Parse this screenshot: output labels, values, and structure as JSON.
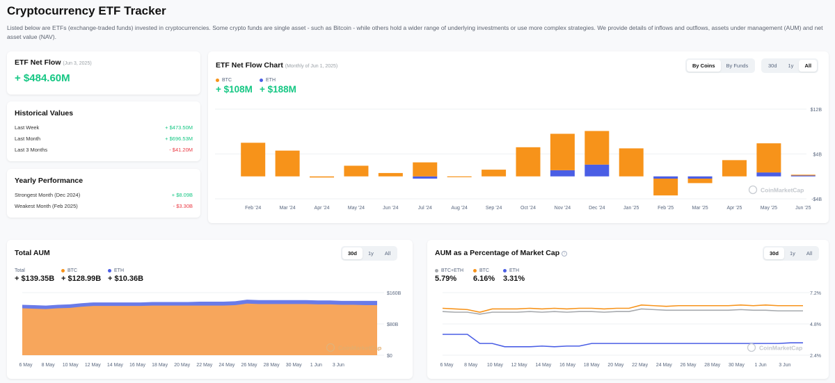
{
  "page": {
    "title": "Cryptocurrency ETF Tracker",
    "description": "Listed below are ETFs (exchange-traded funds) invested in cryptocurrencies. Some crypto funds are single asset - such as Bitcoin - while others hold a wider range of underlying investments or use more complex strategies. We provide details of inflows and outflows, assets under management (AUM) and net asset value (NAV)."
  },
  "net_flow": {
    "label": "ETF Net Flow",
    "date": "(Jun 3, 2025)",
    "value": "+ $484.60M"
  },
  "historical": {
    "title": "Historical Values",
    "rows": [
      {
        "label": "Last Week",
        "value": "+ $473.50M"
      },
      {
        "label": "Last Month",
        "value": "+ $696.53M"
      },
      {
        "label": "Last 3 Months",
        "value": "- $41.20M"
      }
    ]
  },
  "yearly": {
    "title": "Yearly Performance",
    "rows": [
      {
        "label": "Strongest Month (Dec 2024)",
        "value": "+ $8.09B"
      },
      {
        "label": "Weakest Month (Feb 2025)",
        "value": "- $3.30B"
      }
    ]
  },
  "flow_chart": {
    "title": "ETF Net Flow Chart",
    "subtitle": "(Monthly of Jun 1, 2025)",
    "toggle": [
      "By Coins",
      "By Funds"
    ],
    "ranges": [
      "30d",
      "1y",
      "All"
    ],
    "legend": [
      {
        "name": "BTC",
        "value": "+ $108M",
        "color": "#f7931a"
      },
      {
        "name": "ETH",
        "value": "+ $188M",
        "color": "#4a5ee5"
      }
    ],
    "watermark": "CoinMarketCap"
  },
  "aum": {
    "title": "Total AUM",
    "ranges": [
      "30d",
      "1y",
      "All"
    ],
    "legend": [
      {
        "name": "Total",
        "value": "+ $139.35B",
        "color": ""
      },
      {
        "name": "BTC",
        "value": "+ $128.99B",
        "color": "#f7931a"
      },
      {
        "name": "ETH",
        "value": "+ $10.36B",
        "color": "#4a5ee5"
      }
    ],
    "watermark": "CoinMarketCap"
  },
  "aum_pct": {
    "title": "AUM as a Percentage of Market Cap",
    "info_icon": "info-icon",
    "ranges": [
      "30d",
      "1y",
      "All"
    ],
    "legend": [
      {
        "name": "BTC+ETH",
        "value": "5.79%",
        "color": "#a6a9ad"
      },
      {
        "name": "BTC",
        "value": "6.16%",
        "color": "#f7931a"
      },
      {
        "name": "ETH",
        "value": "3.31%",
        "color": "#4a5ee5"
      }
    ],
    "watermark": "CoinMarketCap"
  },
  "chart_data": [
    {
      "type": "bar",
      "title": "ETF Net Flow Chart",
      "categories": [
        "Feb '24",
        "Mar '24",
        "Apr '24",
        "May '24",
        "Jun '24",
        "Jul '24",
        "Aug '24",
        "Sep '24",
        "Oct '24",
        "Nov '24",
        "Dec '24",
        "Jan '25",
        "Feb '25",
        "Mar '25",
        "Apr '25",
        "May '25",
        "Jun '25"
      ],
      "series": [
        {
          "name": "BTC",
          "color": "#f7931a",
          "values": [
            6.0,
            4.6,
            -0.2,
            1.9,
            0.6,
            2.5,
            -0.1,
            1.2,
            5.2,
            6.5,
            6.0,
            5.0,
            -3.0,
            -0.8,
            2.9,
            5.2,
            0.1
          ]
        },
        {
          "name": "ETH",
          "color": "#4a5ee5",
          "values": [
            0,
            0,
            0,
            0,
            0,
            -0.4,
            0,
            0,
            0,
            1.1,
            2.1,
            0,
            -0.4,
            -0.4,
            0,
            0.7,
            0.2
          ]
        }
      ],
      "y_ticks": [
        "$12B",
        "$4B",
        "-$4B"
      ],
      "ylim": [
        -4,
        12
      ]
    },
    {
      "type": "area",
      "title": "Total AUM",
      "x_ticks": [
        "6 May",
        "8 May",
        "10 May",
        "12 May",
        "14 May",
        "16 May",
        "18 May",
        "20 May",
        "22 May",
        "24 May",
        "26 May",
        "28 May",
        "30 May",
        "1 Jun",
        "3 Jun"
      ],
      "series": [
        {
          "name": "BTC",
          "color": "#f7931a",
          "values": [
            120,
            119,
            118,
            120,
            121,
            124,
            126,
            126,
            126,
            126,
            126,
            127,
            127,
            127,
            127,
            127,
            127,
            127,
            128,
            132,
            131,
            131,
            131,
            131,
            131,
            130,
            130,
            129,
            129,
            128,
            128
          ]
        },
        {
          "name": "Total",
          "color": "#4a5ee5",
          "values": [
            129,
            128,
            127,
            129,
            130,
            133,
            135,
            135,
            135,
            135,
            135,
            136,
            136,
            136,
            136,
            137,
            137,
            137,
            138,
            142,
            141,
            141,
            141,
            141,
            141,
            140,
            140,
            139,
            139,
            139,
            139
          ]
        }
      ],
      "y_ticks": [
        "$160B",
        "$80B",
        "$0"
      ],
      "ylim": [
        0,
        160
      ]
    },
    {
      "type": "line",
      "title": "AUM as a Percentage of Market Cap",
      "x_ticks": [
        "6 May",
        "8 May",
        "10 May",
        "12 May",
        "14 May",
        "16 May",
        "18 May",
        "20 May",
        "22 May",
        "24 May",
        "26 May",
        "28 May",
        "30 May",
        "1 Jun",
        "3 Jun"
      ],
      "series": [
        {
          "name": "BTC",
          "color": "#f7931a",
          "values": [
            6.0,
            5.95,
            5.9,
            5.7,
            5.95,
            5.95,
            5.95,
            6.0,
            5.95,
            6.0,
            5.95,
            6.0,
            6.0,
            5.95,
            6.0,
            6.0,
            6.25,
            6.2,
            6.15,
            6.2,
            6.2,
            6.2,
            6.2,
            6.2,
            6.25,
            6.2,
            6.25,
            6.2,
            6.2,
            6.2
          ]
        },
        {
          "name": "BTC+ETH",
          "color": "#a6a9ad",
          "values": [
            5.75,
            5.7,
            5.7,
            5.55,
            5.7,
            5.7,
            5.7,
            5.75,
            5.7,
            5.75,
            5.7,
            5.75,
            5.75,
            5.7,
            5.75,
            5.75,
            5.95,
            5.9,
            5.85,
            5.85,
            5.85,
            5.85,
            5.85,
            5.85,
            5.9,
            5.85,
            5.85,
            5.8,
            5.8,
            5.8
          ]
        },
        {
          "name": "ETH",
          "color": "#4a5ee5",
          "values": [
            4.0,
            4.0,
            4.0,
            3.3,
            3.3,
            3.05,
            3.05,
            3.05,
            3.1,
            3.05,
            3.1,
            3.1,
            3.3,
            3.3,
            3.3,
            3.3,
            3.3,
            3.3,
            3.3,
            3.3,
            3.3,
            3.3,
            3.3,
            3.3,
            3.3,
            3.3,
            3.3,
            3.3,
            3.35,
            3.35
          ]
        }
      ],
      "y_ticks": [
        "7.2%",
        "4.8%",
        "2.4%"
      ],
      "ylim": [
        2.4,
        7.2
      ]
    }
  ]
}
